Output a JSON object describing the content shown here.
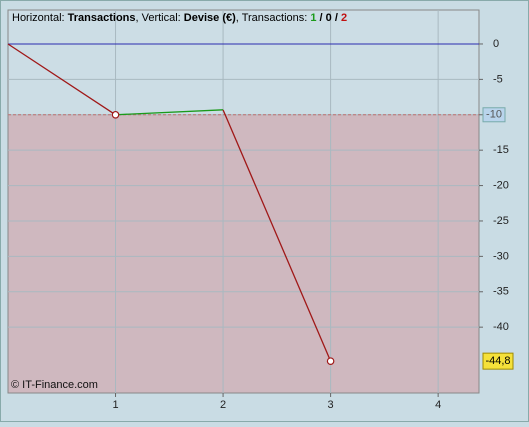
{
  "chart_data": {
    "type": "line",
    "title_parts": [
      {
        "text": "Horizontal: ",
        "bold": false,
        "color": "#000000"
      },
      {
        "text": "Transactions",
        "bold": true,
        "color": "#000000"
      },
      {
        "text": ", Vertical: ",
        "bold": false,
        "color": "#000000"
      },
      {
        "text": "Devise (€)",
        "bold": true,
        "color": "#000000"
      },
      {
        "text": ", Transactions: ",
        "bold": false,
        "color": "#000000"
      },
      {
        "text": "1",
        "bold": true,
        "color": "#1a9a1a"
      },
      {
        "text": " / ",
        "bold": true,
        "color": "#000000"
      },
      {
        "text": "0",
        "bold": true,
        "color": "#000000"
      },
      {
        "text": " / ",
        "bold": true,
        "color": "#000000"
      },
      {
        "text": "2",
        "bold": true,
        "color": "#c01010"
      }
    ],
    "x": [
      0,
      1,
      2,
      3
    ],
    "values": [
      0,
      -10,
      -9.3,
      -44.8
    ],
    "segment_colors": [
      "#a01818",
      "#1a9a1a",
      "#a01818"
    ],
    "markers": [
      1,
      3
    ],
    "xlim": [
      0,
      4.38
    ],
    "ylim": [
      4.8,
      -49.3
    ],
    "xticks": [
      1,
      2,
      3,
      4
    ],
    "yticks": [
      0,
      -5,
      -10,
      -15,
      -20,
      -25,
      -30,
      -35,
      -40
    ],
    "zero_line": 0,
    "threshold": -10,
    "last_value": {
      "value": -44.8,
      "label": "-44,8"
    },
    "grid": true,
    "copyright": "© IT-Finance.com"
  }
}
